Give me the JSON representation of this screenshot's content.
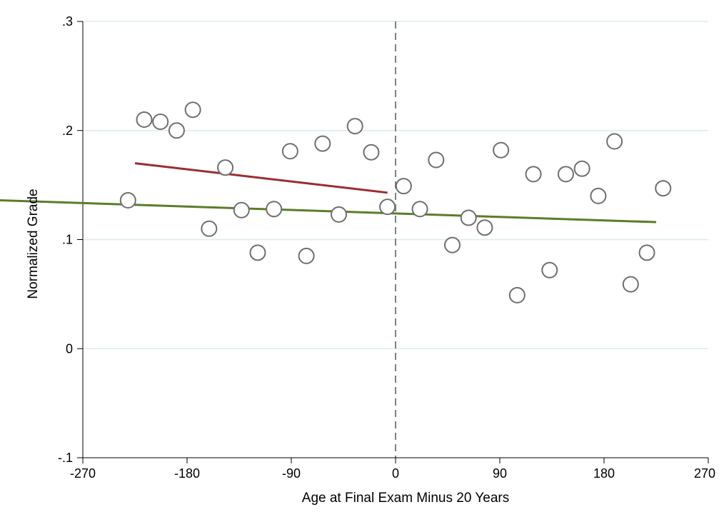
{
  "chart_data": {
    "type": "scatter",
    "title": "",
    "xlabel": "Age at Final Exam Minus 20 Years",
    "ylabel": "Normalized Grade",
    "xlim": [
      -270,
      270
    ],
    "ylim": [
      -0.1,
      0.3
    ],
    "xticks": [
      {
        "value": -270,
        "label": "-270"
      },
      {
        "value": -180,
        "label": "-180"
      },
      {
        "value": -90,
        "label": "-90"
      },
      {
        "value": 0,
        "label": "0"
      },
      {
        "value": 90,
        "label": "90"
      },
      {
        "value": 180,
        "label": "180"
      },
      {
        "value": 270,
        "label": "270"
      }
    ],
    "yticks": [
      {
        "value": -0.1,
        "label": "-.1"
      },
      {
        "value": 0,
        "label": "0"
      },
      {
        "value": 0.1,
        "label": ".1"
      },
      {
        "value": 0.2,
        "label": ".2"
      },
      {
        "value": 0.3,
        "label": ".3"
      }
    ],
    "grid": "horizontal",
    "cutoff_line": {
      "x": 0,
      "style": "dashed",
      "color": "#808080"
    },
    "points": [
      {
        "x": -231,
        "y": 0.136
      },
      {
        "x": -217,
        "y": 0.21
      },
      {
        "x": -203,
        "y": 0.208
      },
      {
        "x": -189,
        "y": 0.2
      },
      {
        "x": -175,
        "y": 0.219
      },
      {
        "x": -161,
        "y": 0.11
      },
      {
        "x": -147,
        "y": 0.166
      },
      {
        "x": -133,
        "y": 0.127
      },
      {
        "x": -119,
        "y": 0.088
      },
      {
        "x": -105,
        "y": 0.128
      },
      {
        "x": -91,
        "y": 0.181
      },
      {
        "x": -77,
        "y": 0.085
      },
      {
        "x": -63,
        "y": 0.188
      },
      {
        "x": -49,
        "y": 0.123
      },
      {
        "x": -35,
        "y": 0.204
      },
      {
        "x": -21,
        "y": 0.18
      },
      {
        "x": -7,
        "y": 0.13
      },
      {
        "x": 7,
        "y": 0.149
      },
      {
        "x": 21,
        "y": 0.128
      },
      {
        "x": 35,
        "y": 0.173
      },
      {
        "x": 49,
        "y": 0.095
      },
      {
        "x": 63,
        "y": 0.12
      },
      {
        "x": 77,
        "y": 0.111
      },
      {
        "x": 91,
        "y": 0.182
      },
      {
        "x": 105,
        "y": 0.049
      },
      {
        "x": 119,
        "y": 0.16
      },
      {
        "x": 133,
        "y": 0.072
      },
      {
        "x": 147,
        "y": 0.16
      },
      {
        "x": 161,
        "y": 0.165
      },
      {
        "x": 175,
        "y": 0.14
      },
      {
        "x": 189,
        "y": 0.19
      },
      {
        "x": 203,
        "y": 0.059
      },
      {
        "x": 217,
        "y": 0.088
      },
      {
        "x": 231,
        "y": 0.147
      }
    ],
    "fit_lines": [
      {
        "x": [
          -225,
          -7
        ],
        "y": [
          0.17,
          0.143
        ],
        "color": "#9b2d30"
      },
      {
        "x": 11,
        "x_end": 225,
        "y": [
          0.136,
          0.116
        ],
        "color": "#5a7d2a"
      }
    ],
    "colors": {
      "marker_stroke": "#6e6e6e",
      "grid": "#dcebe8",
      "axis": "#000000"
    }
  }
}
